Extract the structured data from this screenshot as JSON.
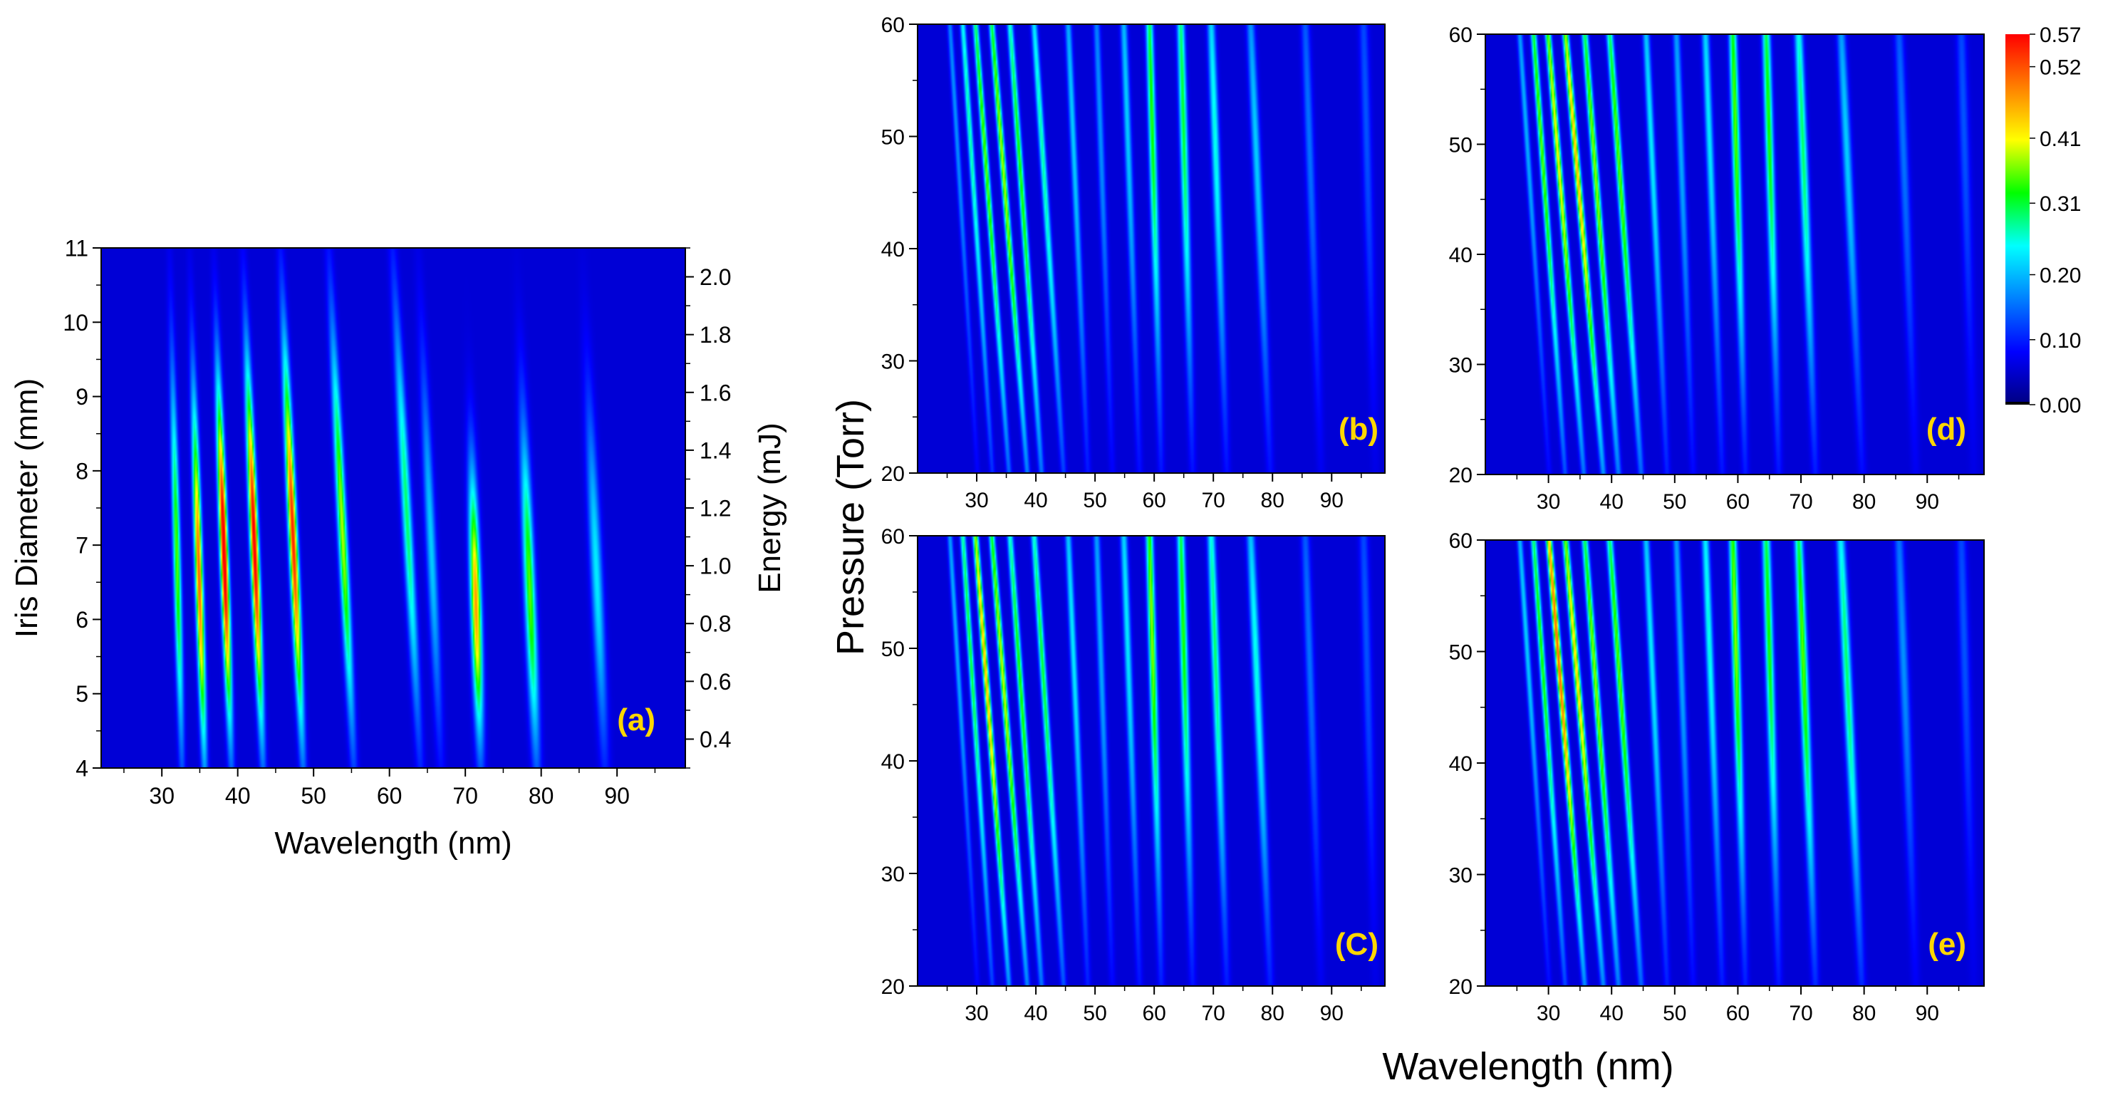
{
  "figure": {
    "colors": {
      "axis": "#000000",
      "panel_label": "#ffd700",
      "text": "#000000"
    },
    "shared_xlabel": "Wavelength (nm)",
    "shared_ylabel": "Pressure (Torr)"
  },
  "colorbar": {
    "min": 0.0,
    "max": 0.57,
    "tick_labels": [
      "0.57",
      "0.52",
      "0.41",
      "0.31",
      "0.20",
      "0.10",
      "0.00"
    ],
    "tick_values": [
      0.57,
      0.52,
      0.41,
      0.31,
      0.2,
      0.1,
      0.0
    ],
    "colormap": [
      "#000080",
      "#0000ff",
      "#0080ff",
      "#00ffff",
      "#00ff00",
      "#ffff00",
      "#ff8000",
      "#ff0000"
    ]
  },
  "chart_data": [
    {
      "id": "a",
      "type": "heatmap",
      "panel_label": "(a)",
      "xlabel": "Wavelength (nm)",
      "ylabel": "Iris Diameter (mm)",
      "y2label": "Energy (mJ)",
      "xlim": [
        22,
        99
      ],
      "ylim": [
        4,
        11
      ],
      "y2lim": [
        0.3,
        2.1
      ],
      "xticks": [
        30,
        40,
        50,
        60,
        70,
        80,
        90
      ],
      "yticks": [
        4,
        5,
        6,
        7,
        8,
        9,
        10,
        11
      ],
      "y2ticks": [
        0.4,
        0.6,
        0.8,
        1.0,
        1.2,
        1.4,
        1.6,
        1.8,
        2.0
      ],
      "y2tick_labels": [
        "0.4",
        "0.6",
        "0.8",
        "1.0",
        "1.2",
        "1.4",
        "1.6",
        "1.8",
        "2.0"
      ],
      "harmonics": [
        {
          "wl": 32.0,
          "peak": 0.3,
          "yc": 6.8,
          "ysp": 1.7,
          "drift": -0.5
        },
        {
          "wl": 34.9,
          "peak": 0.46,
          "yc": 6.6,
          "ysp": 1.6,
          "drift": -0.6
        },
        {
          "wl": 38.2,
          "peak": 0.57,
          "yc": 6.9,
          "ysp": 1.5,
          "drift": -0.7
        },
        {
          "wl": 42.2,
          "peak": 0.54,
          "yc": 7.0,
          "ysp": 1.6,
          "drift": -0.8
        },
        {
          "wl": 47.3,
          "peak": 0.5,
          "yc": 7.1,
          "ysp": 1.7,
          "drift": -0.9
        },
        {
          "wl": 53.8,
          "peak": 0.33,
          "yc": 7.2,
          "ysp": 1.8,
          "drift": -1.0
        },
        {
          "wl": 62.3,
          "peak": 0.24,
          "yc": 7.4,
          "ysp": 1.9,
          "drift": -1.1
        },
        {
          "wl": 65.5,
          "peak": 0.16,
          "yc": 7.0,
          "ysp": 1.7,
          "drift": -0.9
        },
        {
          "wl": 71.4,
          "peak": 0.42,
          "yc": 6.2,
          "ysp": 1.2,
          "drift": -0.6
        },
        {
          "wl": 78.5,
          "peak": 0.3,
          "yc": 6.4,
          "ysp": 1.5,
          "drift": -0.8
        },
        {
          "wl": 87.3,
          "peak": 0.18,
          "yc": 6.6,
          "ysp": 1.6,
          "drift": -0.9
        }
      ]
    },
    {
      "id": "b",
      "type": "heatmap",
      "panel_label": "(b)",
      "xlabel": "",
      "ylabel": "",
      "xlim": [
        20,
        99
      ],
      "ylim": [
        20,
        60
      ],
      "xticks": [
        30,
        40,
        50,
        60,
        70,
        80,
        90
      ],
      "yticks": [
        20,
        30,
        40,
        50,
        60
      ],
      "harmonics": [
        {
          "wl": 26.4,
          "peak": 0.12,
          "yc": 52,
          "ysp": 18,
          "drift": -1.4
        },
        {
          "wl": 28.9,
          "peak": 0.22,
          "yc": 50,
          "ysp": 18,
          "drift": -1.5
        },
        {
          "wl": 31.5,
          "peak": 0.3,
          "yc": 48,
          "ysp": 18,
          "drift": -1.7
        },
        {
          "wl": 34.5,
          "peak": 0.33,
          "yc": 47,
          "ysp": 18,
          "drift": -1.8
        },
        {
          "wl": 37.5,
          "peak": 0.28,
          "yc": 46,
          "ysp": 18,
          "drift": -1.6
        },
        {
          "wl": 41.2,
          "peak": 0.22,
          "yc": 48,
          "ysp": 18,
          "drift": -1.5
        },
        {
          "wl": 46.3,
          "peak": 0.16,
          "yc": 50,
          "ysp": 18,
          "drift": -1.0
        },
        {
          "wl": 50.8,
          "peak": 0.12,
          "yc": 52,
          "ysp": 18,
          "drift": -0.8
        },
        {
          "wl": 55.4,
          "peak": 0.16,
          "yc": 52,
          "ysp": 18,
          "drift": -0.8
        },
        {
          "wl": 59.6,
          "peak": 0.28,
          "yc": 52,
          "ysp": 16,
          "drift": -0.6
        },
        {
          "wl": 64.9,
          "peak": 0.26,
          "yc": 52,
          "ysp": 16,
          "drift": -0.6
        },
        {
          "wl": 70.3,
          "peak": 0.2,
          "yc": 50,
          "ysp": 16,
          "drift": -0.8
        },
        {
          "wl": 77.3,
          "peak": 0.16,
          "yc": 48,
          "ysp": 16,
          "drift": -1.0
        },
        {
          "wl": 86.2,
          "peak": 0.1,
          "yc": 50,
          "ysp": 16,
          "drift": -0.8
        },
        {
          "wl": 95.8,
          "peak": 0.08,
          "yc": 52,
          "ysp": 16,
          "drift": -0.6
        }
      ]
    },
    {
      "id": "d",
      "type": "heatmap",
      "panel_label": "(d)",
      "xlabel": "",
      "ylabel": "",
      "xlim": [
        20,
        99
      ],
      "ylim": [
        20,
        60
      ],
      "xticks": [
        30,
        40,
        50,
        60,
        70,
        80,
        90
      ],
      "yticks": [
        20,
        30,
        40,
        50,
        60
      ],
      "harmonics": [
        {
          "wl": 26.4,
          "peak": 0.14,
          "yc": 52,
          "ysp": 18,
          "drift": -1.4
        },
        {
          "wl": 28.9,
          "peak": 0.3,
          "yc": 50,
          "ysp": 18,
          "drift": -1.5
        },
        {
          "wl": 31.5,
          "peak": 0.36,
          "yc": 49,
          "ysp": 18,
          "drift": -1.7
        },
        {
          "wl": 34.5,
          "peak": 0.4,
          "yc": 48,
          "ysp": 18,
          "drift": -1.8
        },
        {
          "wl": 37.5,
          "peak": 0.32,
          "yc": 47,
          "ysp": 18,
          "drift": -1.6
        },
        {
          "wl": 41.2,
          "peak": 0.3,
          "yc": 48,
          "ysp": 18,
          "drift": -1.5
        },
        {
          "wl": 46.3,
          "peak": 0.18,
          "yc": 50,
          "ysp": 18,
          "drift": -1.0
        },
        {
          "wl": 50.8,
          "peak": 0.14,
          "yc": 52,
          "ysp": 18,
          "drift": -0.8
        },
        {
          "wl": 55.4,
          "peak": 0.18,
          "yc": 52,
          "ysp": 18,
          "drift": -0.8
        },
        {
          "wl": 59.6,
          "peak": 0.3,
          "yc": 52,
          "ysp": 16,
          "drift": -0.6
        },
        {
          "wl": 64.9,
          "peak": 0.28,
          "yc": 52,
          "ysp": 16,
          "drift": -0.6
        },
        {
          "wl": 70.3,
          "peak": 0.24,
          "yc": 50,
          "ysp": 16,
          "drift": -0.8
        },
        {
          "wl": 77.3,
          "peak": 0.16,
          "yc": 49,
          "ysp": 16,
          "drift": -1.0
        },
        {
          "wl": 86.2,
          "peak": 0.1,
          "yc": 50,
          "ysp": 16,
          "drift": -0.8
        },
        {
          "wl": 95.8,
          "peak": 0.08,
          "yc": 52,
          "ysp": 16,
          "drift": -0.6
        }
      ]
    },
    {
      "id": "c",
      "type": "heatmap",
      "panel_label": "(C)",
      "xlabel": "",
      "ylabel": "",
      "xlim": [
        20,
        99
      ],
      "ylim": [
        20,
        60
      ],
      "xticks": [
        30,
        40,
        50,
        60,
        70,
        80,
        90
      ],
      "yticks": [
        20,
        30,
        40,
        50,
        60
      ],
      "harmonics": [
        {
          "wl": 26.4,
          "peak": 0.14,
          "yc": 52,
          "ysp": 18,
          "drift": -1.4
        },
        {
          "wl": 28.9,
          "peak": 0.26,
          "yc": 50,
          "ysp": 18,
          "drift": -1.5
        },
        {
          "wl": 31.5,
          "peak": 0.4,
          "yc": 48,
          "ysp": 18,
          "drift": -1.7
        },
        {
          "wl": 34.5,
          "peak": 0.34,
          "yc": 47,
          "ysp": 18,
          "drift": -1.8
        },
        {
          "wl": 37.5,
          "peak": 0.28,
          "yc": 46,
          "ysp": 18,
          "drift": -1.6
        },
        {
          "wl": 41.2,
          "peak": 0.26,
          "yc": 48,
          "ysp": 18,
          "drift": -1.5
        },
        {
          "wl": 46.3,
          "peak": 0.18,
          "yc": 50,
          "ysp": 18,
          "drift": -1.0
        },
        {
          "wl": 50.8,
          "peak": 0.14,
          "yc": 52,
          "ysp": 18,
          "drift": -0.8
        },
        {
          "wl": 55.4,
          "peak": 0.18,
          "yc": 52,
          "ysp": 18,
          "drift": -0.8
        },
        {
          "wl": 59.6,
          "peak": 0.32,
          "yc": 52,
          "ysp": 16,
          "drift": -0.6
        },
        {
          "wl": 64.9,
          "peak": 0.28,
          "yc": 52,
          "ysp": 16,
          "drift": -0.6
        },
        {
          "wl": 70.3,
          "peak": 0.24,
          "yc": 50,
          "ysp": 16,
          "drift": -0.8
        },
        {
          "wl": 77.3,
          "peak": 0.2,
          "yc": 48,
          "ysp": 16,
          "drift": -1.0
        },
        {
          "wl": 86.2,
          "peak": 0.1,
          "yc": 50,
          "ysp": 16,
          "drift": -0.8
        },
        {
          "wl": 95.8,
          "peak": 0.08,
          "yc": 52,
          "ysp": 16,
          "drift": -0.6
        }
      ]
    },
    {
      "id": "e",
      "type": "heatmap",
      "panel_label": "(e)",
      "xlabel": "",
      "ylabel": "",
      "xlim": [
        20,
        99
      ],
      "ylim": [
        20,
        60
      ],
      "xticks": [
        30,
        40,
        50,
        60,
        70,
        80,
        90
      ],
      "yticks": [
        20,
        30,
        40,
        50,
        60
      ],
      "harmonics": [
        {
          "wl": 26.4,
          "peak": 0.16,
          "yc": 52,
          "ysp": 18,
          "drift": -1.4
        },
        {
          "wl": 28.9,
          "peak": 0.28,
          "yc": 50,
          "ysp": 18,
          "drift": -1.5
        },
        {
          "wl": 31.5,
          "peak": 0.46,
          "yc": 50,
          "ysp": 18,
          "drift": -1.7
        },
        {
          "wl": 34.5,
          "peak": 0.38,
          "yc": 48,
          "ysp": 18,
          "drift": -1.8
        },
        {
          "wl": 37.5,
          "peak": 0.32,
          "yc": 47,
          "ysp": 18,
          "drift": -1.6
        },
        {
          "wl": 41.2,
          "peak": 0.3,
          "yc": 48,
          "ysp": 18,
          "drift": -1.5
        },
        {
          "wl": 46.3,
          "peak": 0.18,
          "yc": 50,
          "ysp": 18,
          "drift": -1.0
        },
        {
          "wl": 50.8,
          "peak": 0.14,
          "yc": 52,
          "ysp": 18,
          "drift": -0.8
        },
        {
          "wl": 55.4,
          "peak": 0.2,
          "yc": 52,
          "ysp": 18,
          "drift": -0.8
        },
        {
          "wl": 59.6,
          "peak": 0.32,
          "yc": 52,
          "ysp": 16,
          "drift": -0.6
        },
        {
          "wl": 64.9,
          "peak": 0.28,
          "yc": 52,
          "ysp": 16,
          "drift": -0.6
        },
        {
          "wl": 70.3,
          "peak": 0.3,
          "yc": 50,
          "ysp": 16,
          "drift": -0.8
        },
        {
          "wl": 77.3,
          "peak": 0.24,
          "yc": 48,
          "ysp": 16,
          "drift": -1.0
        },
        {
          "wl": 86.2,
          "peak": 0.12,
          "yc": 50,
          "ysp": 16,
          "drift": -0.8
        },
        {
          "wl": 95.8,
          "peak": 0.08,
          "yc": 52,
          "ysp": 16,
          "drift": -0.6
        }
      ]
    }
  ]
}
